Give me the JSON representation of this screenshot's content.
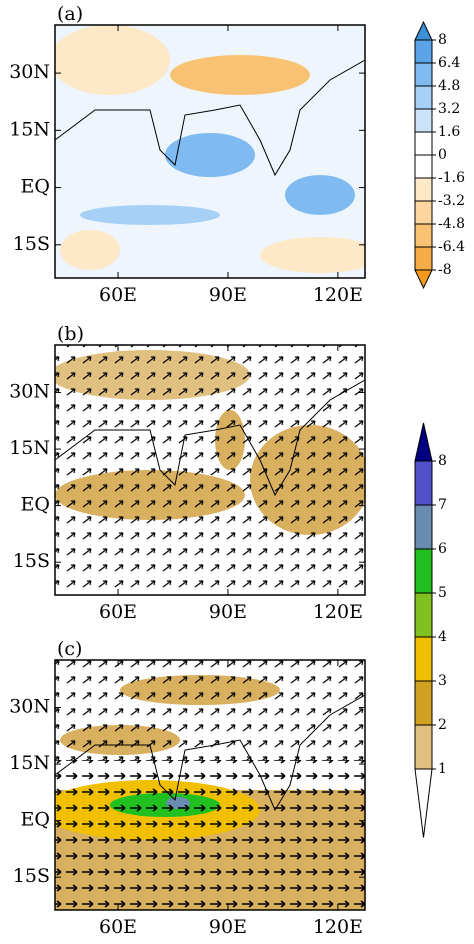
{
  "panels": [
    {
      "label": "(a)"
    },
    {
      "label": "(b)"
    },
    {
      "label": "(c)"
    }
  ],
  "xlim": [
    42.8,
    127.4
  ],
  "ylim": [
    -23.7,
    42.6
  ],
  "xticks": [
    {
      "value": 60,
      "label": "60E"
    },
    {
      "value": 90,
      "label": "90E"
    },
    {
      "value": 120,
      "label": "120E"
    }
  ],
  "yticks": [
    {
      "value": 30,
      "label": "30N"
    },
    {
      "value": 15,
      "label": "15N"
    },
    {
      "value": 0,
      "label": "EQ"
    },
    {
      "value": -15,
      "label": "15S"
    }
  ],
  "colorbars": [
    {
      "levels": [
        8,
        6.4,
        4.8,
        3.2,
        1.6,
        0,
        -1.6,
        -3.2,
        -4.8,
        -6.4,
        -8
      ],
      "colors": [
        "#3a8fd8",
        "#5aa3e6",
        "#7fbaf0",
        "#a6d0f5",
        "#cce3f9",
        "#ffffff",
        "#ffffff",
        "#fde8c8",
        "#fcd69e",
        "#f9c272",
        "#f6ad48",
        "#f39a1f"
      ]
    },
    {
      "levels": [
        8,
        7,
        6,
        5,
        4,
        3,
        2,
        1
      ],
      "colors": [
        "#000080",
        "#5050c8",
        "#6a8cb0",
        "#20c020",
        "#80c020",
        "#f0c000",
        "#d0a020",
        "#e0c080",
        "#ffffff"
      ]
    }
  ]
}
